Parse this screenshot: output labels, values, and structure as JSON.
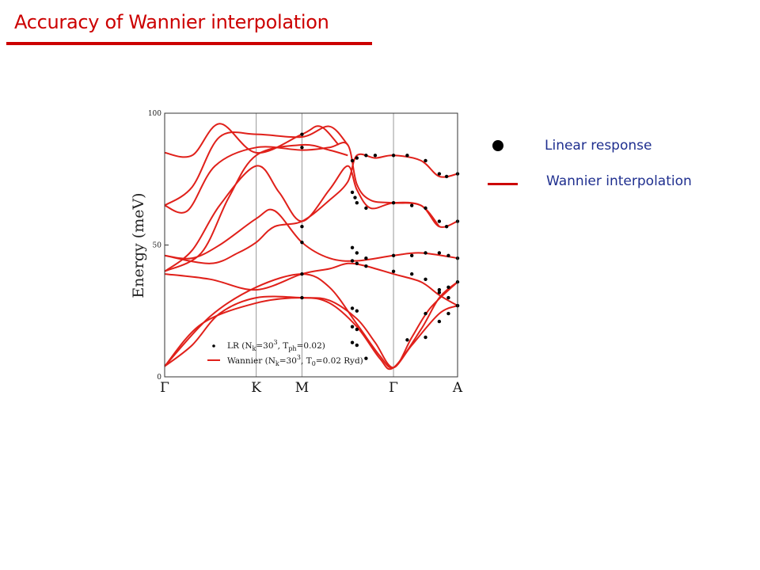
{
  "slide": {
    "title": "Accuracy of Wannier interpolation",
    "title_color": "#cc0000",
    "legend_text_color": "#1f2f8f"
  },
  "side_legend": {
    "dot_label": "Linear response",
    "line_label": "Wannier interpolation"
  },
  "chart_data": {
    "type": "line",
    "ylabel": "Energy (meV)",
    "xlabel": "",
    "ylim": [
      0,
      100
    ],
    "y_ticks": [
      0,
      50,
      100
    ],
    "k_points": [
      {
        "label": "Γ",
        "x": 0
      },
      {
        "label": "K",
        "x": 1
      },
      {
        "label": "M",
        "x": 1.5
      },
      {
        "label": "Γ",
        "x": 2.5
      },
      {
        "label": "A",
        "x": 3.2
      }
    ],
    "xlim": [
      0,
      3.2
    ],
    "grid": "vertical lines at high-symmetry points",
    "inner_legend": {
      "placement": "bottom-left",
      "lr_label": "LR (N",
      "lr_sub1": "k",
      "lr_mid": "=30",
      "lr_sup": "3",
      "lr_mid2": ", T",
      "lr_sub2": "ph",
      "lr_end": "=0.02)",
      "w_label": "Wannier (N",
      "w_sub1": "k",
      "w_mid": "=30",
      "w_sup": "3",
      "w_mid2": ", T",
      "w_sub2": "0",
      "w_end": "=0.02 Ryd)"
    },
    "colors": {
      "wannier": "#e0201a",
      "lr": "#000000",
      "grid": "#999999"
    },
    "series": [
      {
        "points": [
          [
            0,
            4
          ],
          [
            0.5,
            23
          ],
          [
            1,
            34
          ],
          [
            1.5,
            39
          ],
          [
            1.8,
            34
          ],
          [
            2.1,
            20
          ],
          [
            2.35,
            8
          ],
          [
            2.5,
            3.5
          ],
          [
            2.7,
            12
          ],
          [
            3.0,
            24
          ],
          [
            3.2,
            27
          ]
        ]
      },
      {
        "points": [
          [
            0,
            4
          ],
          [
            0.4,
            20
          ],
          [
            1,
            28
          ],
          [
            1.5,
            30
          ],
          [
            1.8,
            28
          ],
          [
            2.1,
            19
          ],
          [
            2.35,
            7
          ],
          [
            2.5,
            3.5
          ],
          [
            2.8,
            18
          ],
          [
            3.0,
            30
          ],
          [
            3.2,
            36
          ]
        ]
      },
      {
        "points": [
          [
            0,
            4
          ],
          [
            0.3,
            12
          ],
          [
            0.6,
            24
          ],
          [
            1,
            30
          ],
          [
            1.5,
            30
          ],
          [
            1.8,
            29
          ],
          [
            2.1,
            22
          ],
          [
            2.3,
            13
          ],
          [
            2.5,
            3.5
          ],
          [
            2.7,
            15
          ],
          [
            2.9,
            26
          ],
          [
            3.2,
            36
          ]
        ]
      },
      {
        "points": [
          [
            0,
            39
          ],
          [
            0.5,
            37
          ],
          [
            1,
            33
          ],
          [
            1.5,
            39
          ],
          [
            1.8,
            41
          ],
          [
            2.0,
            43
          ],
          [
            2.2,
            42
          ],
          [
            2.5,
            39
          ],
          [
            2.8,
            36
          ],
          [
            3.0,
            31
          ],
          [
            3.2,
            27
          ]
        ]
      },
      {
        "points": [
          [
            0,
            46
          ],
          [
            0.3,
            45
          ],
          [
            0.6,
            50
          ],
          [
            1,
            60
          ],
          [
            1.2,
            63
          ],
          [
            1.5,
            51
          ],
          [
            1.8,
            45
          ],
          [
            2.1,
            44
          ],
          [
            2.5,
            46
          ],
          [
            2.8,
            47
          ],
          [
            3.2,
            45
          ]
        ]
      },
      {
        "points": [
          [
            0,
            46
          ],
          [
            0.5,
            43
          ],
          [
            0.8,
            47
          ],
          [
            1,
            51
          ],
          [
            1.2,
            57
          ],
          [
            1.5,
            59
          ],
          [
            1.8,
            67
          ],
          [
            2.0,
            74
          ],
          [
            2.1,
            84
          ],
          [
            2.3,
            83
          ],
          [
            2.5,
            84
          ],
          [
            2.8,
            82
          ],
          [
            3.0,
            76
          ],
          [
            3.2,
            77
          ]
        ]
      },
      {
        "points": [
          [
            0,
            40
          ],
          [
            0.3,
            48
          ],
          [
            0.6,
            65
          ],
          [
            1,
            80
          ],
          [
            1.25,
            70
          ],
          [
            1.5,
            59
          ],
          [
            1.8,
            71
          ],
          [
            2.0,
            80
          ],
          [
            2.1,
            71
          ],
          [
            2.25,
            64
          ],
          [
            2.5,
            66
          ],
          [
            2.8,
            65
          ],
          [
            3.0,
            57
          ],
          [
            3.2,
            59
          ]
        ]
      },
      {
        "points": [
          [
            0,
            65
          ],
          [
            0.25,
            63
          ],
          [
            0.55,
            80
          ],
          [
            1,
            87
          ],
          [
            1.5,
            86
          ],
          [
            1.8,
            87
          ],
          [
            2.0,
            88
          ],
          [
            2.1,
            73
          ],
          [
            2.25,
            67
          ],
          [
            2.5,
            66
          ],
          [
            2.8,
            65
          ],
          [
            3.0,
            57
          ]
        ]
      },
      {
        "points": [
          [
            0,
            65
          ],
          [
            0.3,
            72
          ],
          [
            0.6,
            91
          ],
          [
            1,
            92
          ],
          [
            1.5,
            91
          ],
          [
            1.8,
            95
          ],
          [
            2.0,
            88
          ]
        ]
      },
      {
        "points": [
          [
            0,
            85
          ],
          [
            0.3,
            84
          ],
          [
            0.6,
            96
          ],
          [
            1,
            85
          ],
          [
            1.5,
            92
          ],
          [
            1.7,
            95
          ],
          [
            1.9,
            88
          ]
        ]
      },
      {
        "points": [
          [
            0,
            40
          ],
          [
            0.4,
            47
          ],
          [
            0.7,
            68
          ],
          [
            1,
            84
          ],
          [
            1.5,
            88
          ],
          [
            1.8,
            86
          ],
          [
            2.0,
            84
          ]
        ]
      }
    ],
    "lr_points": [
      [
        1.5,
        92
      ],
      [
        1.5,
        87
      ],
      [
        1.5,
        57
      ],
      [
        1.5,
        51
      ],
      [
        1.5,
        39
      ],
      [
        1.5,
        30
      ],
      [
        2.05,
        82
      ],
      [
        2.1,
        83
      ],
      [
        2.2,
        84
      ],
      [
        2.3,
        84
      ],
      [
        2.5,
        84
      ],
      [
        2.65,
        84
      ],
      [
        2.85,
        82
      ],
      [
        3.0,
        77
      ],
      [
        3.08,
        76
      ],
      [
        3.2,
        77
      ],
      [
        2.05,
        70
      ],
      [
        2.08,
        68
      ],
      [
        2.1,
        66
      ],
      [
        2.2,
        64
      ],
      [
        2.5,
        66
      ],
      [
        2.7,
        65
      ],
      [
        2.85,
        64
      ],
      [
        3.0,
        59
      ],
      [
        3.08,
        57
      ],
      [
        3.2,
        59
      ],
      [
        2.05,
        49
      ],
      [
        2.1,
        47
      ],
      [
        2.2,
        45
      ],
      [
        2.5,
        46
      ],
      [
        2.7,
        46
      ],
      [
        2.85,
        47
      ],
      [
        3.0,
        47
      ],
      [
        3.1,
        46
      ],
      [
        3.2,
        45
      ],
      [
        2.05,
        44
      ],
      [
        2.1,
        43
      ],
      [
        2.2,
        42
      ],
      [
        2.5,
        40
      ],
      [
        2.7,
        39
      ],
      [
        2.85,
        37
      ],
      [
        3.0,
        32
      ],
      [
        3.1,
        30
      ],
      [
        3.2,
        27
      ],
      [
        2.05,
        26
      ],
      [
        2.1,
        25
      ],
      [
        2.05,
        19
      ],
      [
        2.1,
        18
      ],
      [
        2.05,
        13
      ],
      [
        2.1,
        12
      ],
      [
        2.2,
        7
      ],
      [
        2.65,
        14
      ],
      [
        2.85,
        24
      ],
      [
        3.0,
        33
      ],
      [
        3.1,
        34
      ],
      [
        3.2,
        36
      ],
      [
        2.85,
        15
      ],
      [
        3.0,
        21
      ],
      [
        3.1,
        24
      ],
      [
        3.2,
        27
      ]
    ]
  }
}
